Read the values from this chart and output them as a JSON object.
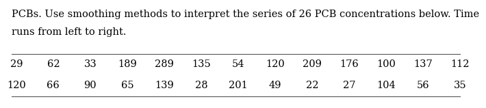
{
  "text_line1": "PCBs. Use smoothing methods to interpret the series of 26 PCB concentrations below. Time",
  "text_line2": "runs from left to right.",
  "row1": [
    29,
    62,
    33,
    189,
    289,
    135,
    54,
    120,
    209,
    176,
    100,
    137,
    112
  ],
  "row2": [
    120,
    66,
    90,
    65,
    139,
    28,
    201,
    49,
    22,
    27,
    104,
    56,
    35
  ],
  "text_fontsize": 10.5,
  "table_fontsize": 10.5,
  "bg_color": "#ffffff",
  "text_color": "#000000",
  "line_color": "#555555"
}
